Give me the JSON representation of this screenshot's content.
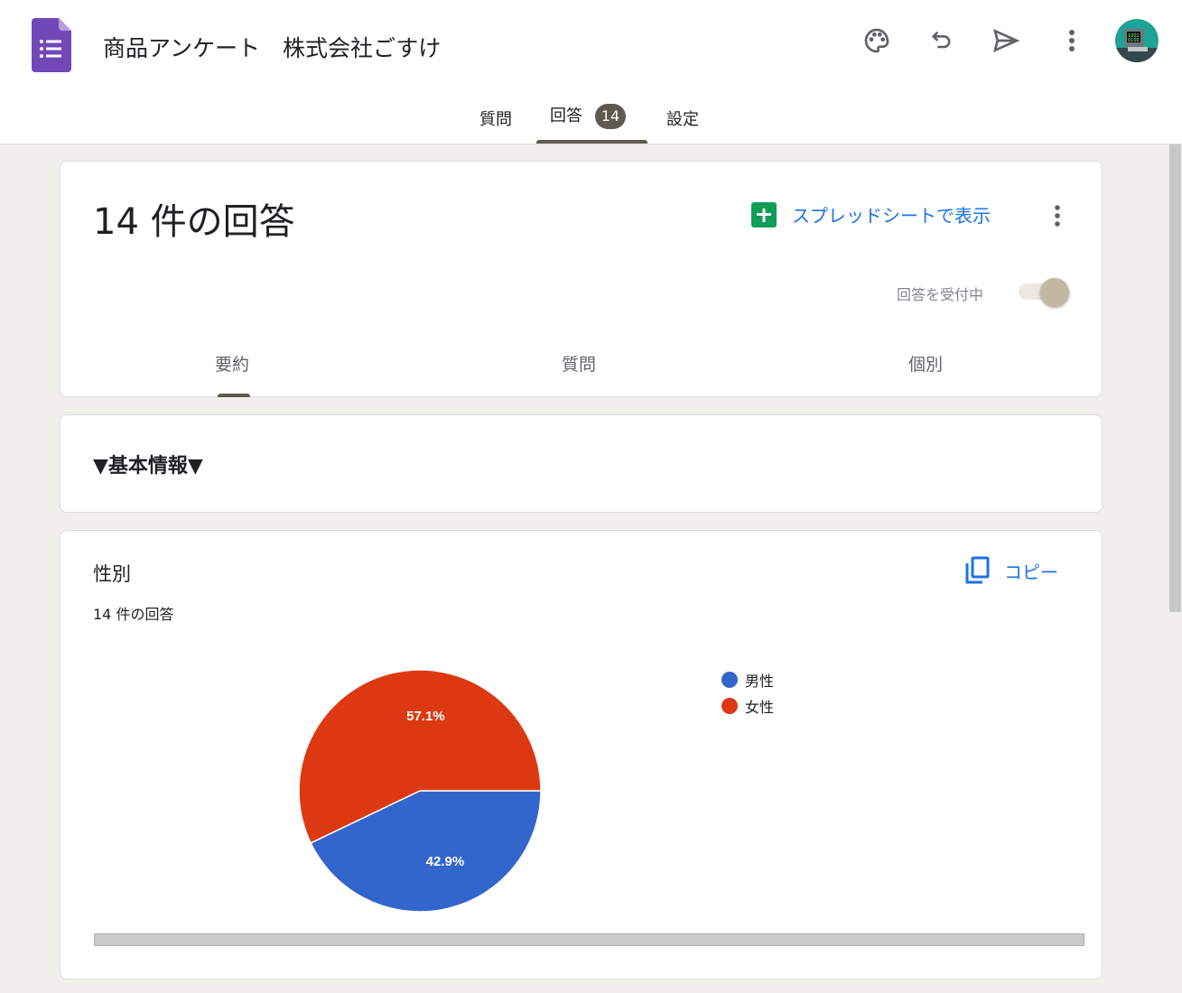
{
  "header": {
    "title": "商品アンケート　株式会社ごすけ",
    "icons": [
      "palette-icon",
      "undo-icon",
      "send-icon",
      "more-vert-icon"
    ]
  },
  "tabs": [
    {
      "label": "質問"
    },
    {
      "label": "回答",
      "badge": "14"
    },
    {
      "label": "設定"
    }
  ],
  "summary": {
    "title": "14 件の回答",
    "sheets_label": "スプレッドシートで表示",
    "accepting_label": "回答を受付中",
    "accepting": true,
    "subtabs": [
      "要約",
      "質問",
      "個別"
    ],
    "active_subtab": "要約"
  },
  "section": {
    "title": "▼基本情報▼"
  },
  "question": {
    "title": "性別",
    "count": "14 件の回答",
    "copy_label": "コピー"
  },
  "colors": {
    "accent": "#1a73e8",
    "male": "#3366cc",
    "female": "#dc3912",
    "badge": "#5f5a50"
  },
  "chart_data": {
    "type": "pie",
    "categories": [
      "男性",
      "女性"
    ],
    "values": [
      42.9,
      57.1
    ],
    "labels": [
      "42.9%",
      "57.1%"
    ],
    "legend": "right"
  }
}
